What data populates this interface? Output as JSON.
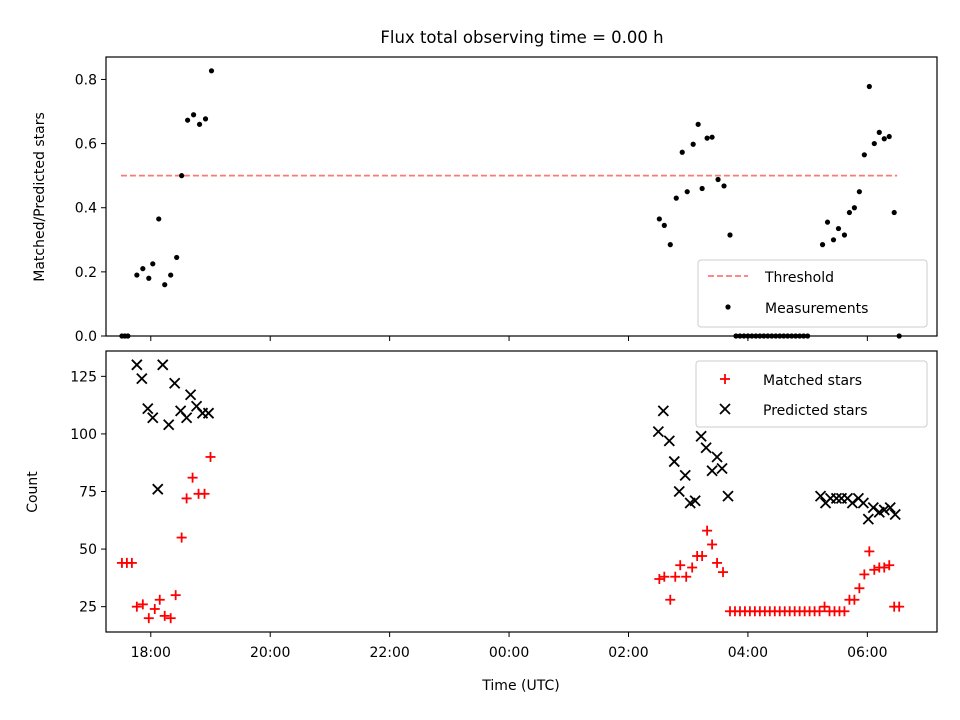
{
  "figure": {
    "title": "Flux total observing time = 0.00 h",
    "xlabel": "Time (UTC)"
  },
  "chart_data": [
    {
      "type": "scatter",
      "ylabel": "Matched/Predicted stars",
      "xlim": [
        "17:15",
        "07:10"
      ],
      "ylim": [
        0,
        0.87
      ],
      "yticks": [
        0.0,
        0.2,
        0.4,
        0.6,
        0.8
      ],
      "ytick_labels": [
        "0.0",
        "0.2",
        "0.4",
        "0.6",
        "0.8"
      ],
      "legend_position": "lower right",
      "threshold": {
        "name": "Threshold",
        "value": 0.5,
        "x_start": "17:30",
        "x_end": "06:30",
        "color": "#ff7777",
        "style": "dashed"
      },
      "series": [
        {
          "name": "Measurements",
          "marker": "dot",
          "color": "#000000",
          "points": [
            [
              "17:31",
              0.0
            ],
            [
              "17:34",
              0.0
            ],
            [
              "17:37",
              0.0
            ],
            [
              "17:46",
              0.19
            ],
            [
              "17:52",
              0.21
            ],
            [
              "17:58",
              0.18
            ],
            [
              "18:02",
              0.225
            ],
            [
              "18:08",
              0.365
            ],
            [
              "18:14",
              0.16
            ],
            [
              "18:20",
              0.19
            ],
            [
              "18:26",
              0.245
            ],
            [
              "18:31",
              0.5
            ],
            [
              "18:37",
              0.673
            ],
            [
              "18:43",
              0.69
            ],
            [
              "18:49",
              0.66
            ],
            [
              "18:55",
              0.677
            ],
            [
              "19:01",
              0.827
            ],
            [
              "02:31",
              0.365
            ],
            [
              "02:36",
              0.345
            ],
            [
              "02:42",
              0.285
            ],
            [
              "02:48",
              0.43
            ],
            [
              "02:54",
              0.573
            ],
            [
              "02:59",
              0.45
            ],
            [
              "03:05",
              0.598
            ],
            [
              "03:10",
              0.66
            ],
            [
              "03:14",
              0.46
            ],
            [
              "03:19",
              0.617
            ],
            [
              "03:24",
              0.62
            ],
            [
              "03:30",
              0.488
            ],
            [
              "03:36",
              0.468
            ],
            [
              "03:42",
              0.315
            ],
            [
              "03:48",
              0.0
            ],
            [
              "03:52",
              0.0
            ],
            [
              "03:56",
              0.0
            ],
            [
              "04:00",
              0.0
            ],
            [
              "04:04",
              0.0
            ],
            [
              "04:08",
              0.0
            ],
            [
              "04:12",
              0.0
            ],
            [
              "04:16",
              0.0
            ],
            [
              "04:20",
              0.0
            ],
            [
              "04:24",
              0.0
            ],
            [
              "04:28",
              0.0
            ],
            [
              "04:32",
              0.0
            ],
            [
              "04:36",
              0.0
            ],
            [
              "04:40",
              0.0
            ],
            [
              "04:44",
              0.0
            ],
            [
              "04:48",
              0.0
            ],
            [
              "04:52",
              0.0
            ],
            [
              "04:56",
              0.0
            ],
            [
              "05:00",
              0.0
            ],
            [
              "05:15",
              0.285
            ],
            [
              "05:20",
              0.355
            ],
            [
              "05:26",
              0.3
            ],
            [
              "05:31",
              0.335
            ],
            [
              "05:37",
              0.315
            ],
            [
              "05:42",
              0.385
            ],
            [
              "05:47",
              0.4
            ],
            [
              "05:52",
              0.45
            ],
            [
              "05:57",
              0.565
            ],
            [
              "06:02",
              0.778
            ],
            [
              "06:07",
              0.6
            ],
            [
              "06:12",
              0.635
            ],
            [
              "06:17",
              0.615
            ],
            [
              "06:22",
              0.622
            ],
            [
              "06:27",
              0.385
            ],
            [
              "06:32",
              0.0
            ]
          ]
        }
      ]
    },
    {
      "type": "scatter",
      "ylabel": "Count",
      "xlim": [
        "17:15",
        "07:10"
      ],
      "ylim": [
        14,
        136
      ],
      "yticks": [
        25,
        50,
        75,
        100,
        125
      ],
      "ytick_labels": [
        "25",
        "50",
        "75",
        "100",
        "125"
      ],
      "xticks": [
        "18:00",
        "20:00",
        "22:00",
        "00:00",
        "02:00",
        "04:00",
        "06:00"
      ],
      "legend_position": "upper right",
      "series": [
        {
          "name": "Matched stars",
          "marker": "plus",
          "color": "#ff0000",
          "points": [
            [
              "17:31",
              44
            ],
            [
              "17:36",
              44
            ],
            [
              "17:41",
              44
            ],
            [
              "17:46",
              25
            ],
            [
              "17:52",
              26
            ],
            [
              "17:58",
              20
            ],
            [
              "18:04",
              24
            ],
            [
              "18:09",
              28
            ],
            [
              "18:14",
              21
            ],
            [
              "18:20",
              20
            ],
            [
              "18:25",
              30
            ],
            [
              "18:31",
              55
            ],
            [
              "18:36",
              72
            ],
            [
              "18:42",
              81
            ],
            [
              "18:48",
              74
            ],
            [
              "18:54",
              74
            ],
            [
              "19:00",
              90
            ],
            [
              "02:31",
              37
            ],
            [
              "02:36",
              38
            ],
            [
              "02:42",
              28
            ],
            [
              "02:47",
              38
            ],
            [
              "02:52",
              43
            ],
            [
              "02:58",
              38
            ],
            [
              "03:04",
              42
            ],
            [
              "03:09",
              47
            ],
            [
              "03:14",
              47
            ],
            [
              "03:19",
              58
            ],
            [
              "03:24",
              52
            ],
            [
              "03:29",
              44
            ],
            [
              "03:35",
              40
            ],
            [
              "03:42",
              23
            ],
            [
              "03:47",
              23
            ],
            [
              "03:52",
              23
            ],
            [
              "03:57",
              23
            ],
            [
              "04:02",
              23
            ],
            [
              "04:07",
              23
            ],
            [
              "04:12",
              23
            ],
            [
              "04:17",
              23
            ],
            [
              "04:22",
              23
            ],
            [
              "04:27",
              23
            ],
            [
              "04:32",
              23
            ],
            [
              "04:37",
              23
            ],
            [
              "04:42",
              23
            ],
            [
              "04:47",
              23
            ],
            [
              "04:52",
              23
            ],
            [
              "04:57",
              23
            ],
            [
              "05:02",
              23
            ],
            [
              "05:07",
              23
            ],
            [
              "05:12",
              23
            ],
            [
              "05:17",
              25
            ],
            [
              "05:22",
              23
            ],
            [
              "05:27",
              23
            ],
            [
              "05:32",
              23
            ],
            [
              "05:37",
              23
            ],
            [
              "05:42",
              28
            ],
            [
              "05:47",
              28
            ],
            [
              "05:52",
              33
            ],
            [
              "05:57",
              39
            ],
            [
              "06:02",
              49
            ],
            [
              "06:07",
              41
            ],
            [
              "06:12",
              42
            ],
            [
              "06:17",
              42
            ],
            [
              "06:22",
              43
            ],
            [
              "06:27",
              25
            ],
            [
              "06:32",
              25
            ]
          ]
        },
        {
          "name": "Predicted stars",
          "marker": "x",
          "color": "#000000",
          "points": [
            [
              "17:46",
              130
            ],
            [
              "17:51",
              124
            ],
            [
              "17:57",
              111
            ],
            [
              "18:02",
              107
            ],
            [
              "18:07",
              76
            ],
            [
              "18:12",
              130
            ],
            [
              "18:18",
              104
            ],
            [
              "18:24",
              122
            ],
            [
              "18:30",
              110
            ],
            [
              "18:36",
              107
            ],
            [
              "18:40",
              117
            ],
            [
              "18:46",
              112
            ],
            [
              "18:52",
              109
            ],
            [
              "18:58",
              109
            ],
            [
              "02:30",
              101
            ],
            [
              "02:35",
              110
            ],
            [
              "02:41",
              97
            ],
            [
              "02:46",
              88
            ],
            [
              "02:51",
              75
            ],
            [
              "02:57",
              82
            ],
            [
              "03:02",
              70
            ],
            [
              "03:07",
              71
            ],
            [
              "03:13",
              99
            ],
            [
              "03:18",
              94
            ],
            [
              "03:24",
              84
            ],
            [
              "03:29",
              90
            ],
            [
              "03:34",
              85
            ],
            [
              "03:40",
              73
            ],
            [
              "05:13",
              73
            ],
            [
              "05:18",
              70
            ],
            [
              "05:23",
              72
            ],
            [
              "05:29",
              72
            ],
            [
              "05:34",
              72
            ],
            [
              "05:40",
              72
            ],
            [
              "05:45",
              70
            ],
            [
              "05:51",
              72
            ],
            [
              "05:56",
              70
            ],
            [
              "06:01",
              63
            ],
            [
              "06:06",
              68
            ],
            [
              "06:12",
              66
            ],
            [
              "06:17",
              67
            ],
            [
              "06:23",
              68
            ],
            [
              "06:28",
              65
            ]
          ]
        }
      ]
    }
  ]
}
